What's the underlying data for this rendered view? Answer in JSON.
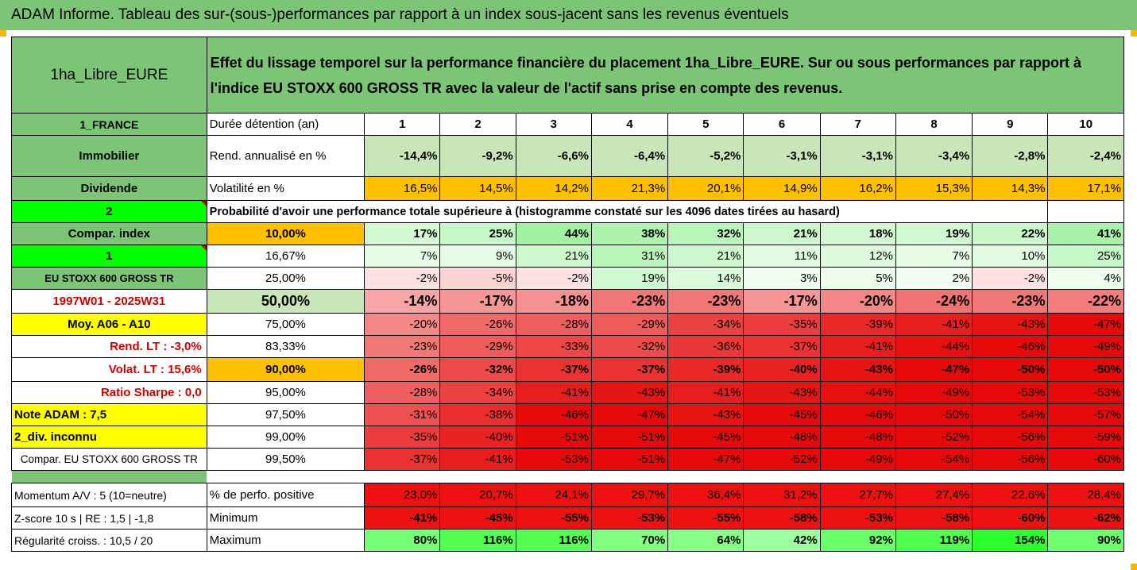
{
  "title": "ADAM Informe. Tableau des sur-(sous-)performances par rapport à un index sous-jacent sans les revenus éventuels",
  "fund_name": "1ha_Libre_EURE",
  "description": "Effet du lissage temporel sur la performance financière du placement 1ha_Libre_EURE. Sur ou sous performances par rapport à l'indice EU STOXX 600 GROSS TR avec la valeur de l'actif sans prise en compte des revenus.",
  "left": {
    "country": "1_FRANCE",
    "category": "Immobilier",
    "dividend": "Dividende",
    "two": "2",
    "compar_index": "Compar. index",
    "one": "1",
    "index_name": "EU STOXX 600 GROSS TR",
    "period": "1997W01 - 2025W31",
    "moy": "Moy. A06 - A10",
    "rend_lt": "Rend. LT :   -3,0%",
    "volat_lt": "Volat. LT :   15,6%",
    "sharpe": "Ratio Sharpe :   0,0",
    "note": "Note ADAM : 7,5",
    "div": "2_div. inconnu",
    "compar_full": "Compar. EU STOXX 600 GROSS TR",
    "momentum": "Momentum A/V : 5 (10=neutre)",
    "zscore": "Z-score 10 s  | RE : 1,5  | -1,8",
    "regularite": "Régularité croiss. : 10,5 / 20"
  },
  "headers": {
    "duree": "Durée détention (an)",
    "years": [
      "1",
      "2",
      "3",
      "4",
      "5",
      "6",
      "7",
      "8",
      "9",
      "10"
    ],
    "rend": "Rend. annualisé en %",
    "volat": "Volatilité en %",
    "proba": "Probabilité d'avoir une performance totale supérieure à (histogramme constaté sur les 4096 dates tirées au hasard)",
    "pct_pos": "% de perfo. positive",
    "minimum": "Minimum",
    "maximum": "Maximum"
  },
  "rend_values": [
    "-14,4%",
    "-9,2%",
    "-6,6%",
    "-6,4%",
    "-5,2%",
    "-3,1%",
    "-3,1%",
    "-3,4%",
    "-2,8%",
    "-2,4%"
  ],
  "volat_values": [
    "16,5%",
    "14,5%",
    "14,2%",
    "21,3%",
    "20,1%",
    "14,9%",
    "16,2%",
    "15,3%",
    "14,3%",
    "17,1%"
  ],
  "quantile_rows": [
    {
      "q": "10,00%",
      "values": [
        "17%",
        "25%",
        "44%",
        "38%",
        "32%",
        "21%",
        "18%",
        "19%",
        "22%",
        "41%"
      ]
    },
    {
      "q": "16,67%",
      "values": [
        "7%",
        "9%",
        "21%",
        "31%",
        "21%",
        "11%",
        "12%",
        "7%",
        "10%",
        "25%"
      ]
    },
    {
      "q": "25,00%",
      "values": [
        "-2%",
        "-5%",
        "-2%",
        "19%",
        "14%",
        "3%",
        "5%",
        "2%",
        "-2%",
        "4%"
      ]
    },
    {
      "q": "50,00%",
      "values": [
        "-14%",
        "-17%",
        "-18%",
        "-23%",
        "-23%",
        "-17%",
        "-20%",
        "-24%",
        "-23%",
        "-22%"
      ]
    },
    {
      "q": "75,00%",
      "values": [
        "-20%",
        "-26%",
        "-28%",
        "-29%",
        "-34%",
        "-35%",
        "-39%",
        "-41%",
        "-43%",
        "-47%"
      ]
    },
    {
      "q": "83,33%",
      "values": [
        "-23%",
        "-29%",
        "-33%",
        "-32%",
        "-36%",
        "-37%",
        "-41%",
        "-44%",
        "-46%",
        "-49%"
      ]
    },
    {
      "q": "90,00%",
      "values": [
        "-26%",
        "-32%",
        "-37%",
        "-37%",
        "-39%",
        "-40%",
        "-43%",
        "-47%",
        "-50%",
        "-50%"
      ]
    },
    {
      "q": "95,00%",
      "values": [
        "-28%",
        "-34%",
        "-41%",
        "-43%",
        "-41%",
        "-43%",
        "-44%",
        "-49%",
        "-53%",
        "-53%"
      ]
    },
    {
      "q": "97,50%",
      "values": [
        "-31%",
        "-38%",
        "-46%",
        "-47%",
        "-43%",
        "-45%",
        "-46%",
        "-50%",
        "-54%",
        "-57%"
      ]
    },
    {
      "q": "99,00%",
      "values": [
        "-35%",
        "-40%",
        "-51%",
        "-51%",
        "-45%",
        "-48%",
        "-48%",
        "-52%",
        "-56%",
        "-59%"
      ]
    },
    {
      "q": "99,50%",
      "values": [
        "-37%",
        "-41%",
        "-53%",
        "-51%",
        "-47%",
        "-52%",
        "-49%",
        "-54%",
        "-56%",
        "-60%"
      ]
    }
  ],
  "pct_pos_values": [
    "23,0%",
    "20,7%",
    "24,1%",
    "29,7%",
    "36,4%",
    "31,2%",
    "27,7%",
    "27,4%",
    "22,6%",
    "28,4%"
  ],
  "min_values": [
    "-41%",
    "-45%",
    "-55%",
    "-53%",
    "-55%",
    "-58%",
    "-53%",
    "-58%",
    "-60%",
    "-62%"
  ],
  "max_values": [
    "80%",
    "116%",
    "116%",
    "70%",
    "64%",
    "42%",
    "92%",
    "119%",
    "154%",
    "90%"
  ],
  "colors": {
    "header_green": "#7cc576",
    "orange": "#ffc000",
    "yellow": "#ffff00",
    "bright_green": "#00ff00",
    "red": "#ff0000",
    "label_red": "#d00000"
  }
}
